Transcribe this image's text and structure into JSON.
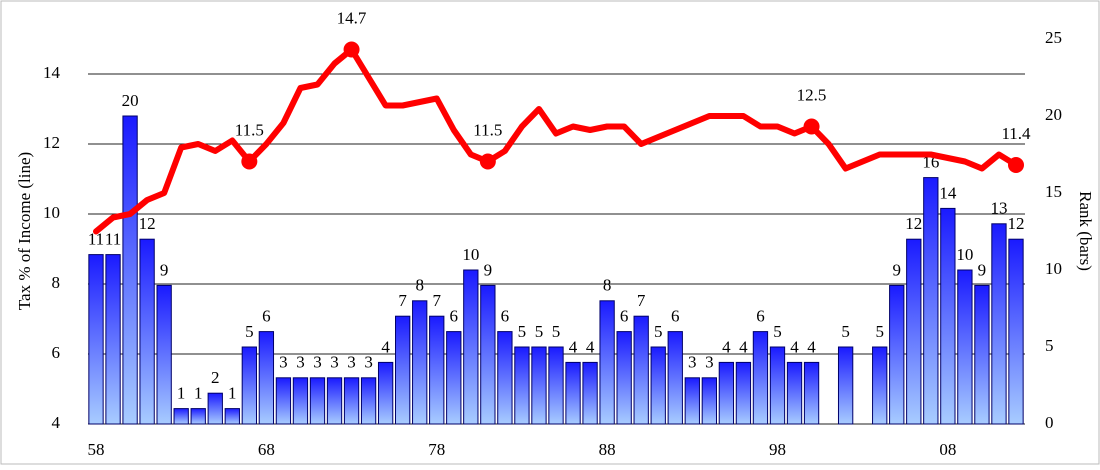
{
  "chart_data": {
    "type": "bar-line",
    "categories": [
      "58",
      null,
      null,
      null,
      null,
      null,
      null,
      null,
      null,
      null,
      "68",
      null,
      null,
      null,
      null,
      null,
      null,
      null,
      null,
      null,
      "78",
      null,
      null,
      null,
      null,
      null,
      null,
      null,
      null,
      null,
      "88",
      null,
      null,
      null,
      null,
      null,
      null,
      null,
      null,
      null,
      "98",
      null,
      null,
      null,
      null,
      null,
      null,
      null,
      null,
      null,
      "08",
      null,
      null,
      null,
      null
    ],
    "series": [
      {
        "name": "Rank (bars)",
        "type": "bar",
        "axis": "y2",
        "color": "#1f2fff",
        "values": [
          11,
          11,
          20,
          12,
          9,
          1,
          1,
          2,
          1,
          5,
          6,
          3,
          3,
          3,
          3,
          3,
          3,
          4,
          7,
          8,
          7,
          6,
          10,
          9,
          6,
          5,
          5,
          5,
          4,
          4,
          8,
          6,
          7,
          5,
          6,
          3,
          3,
          4,
          4,
          6,
          5,
          4,
          4,
          null,
          5,
          null,
          5,
          9,
          12,
          16,
          14,
          10,
          9,
          13,
          12
        ]
      },
      {
        "name": "Tax % of Income (line)",
        "type": "line",
        "axis": "y",
        "color": "#ff0000",
        "values": [
          9.5,
          9.9,
          10.0,
          10.4,
          10.6,
          11.9,
          12.0,
          11.8,
          12.1,
          11.5,
          12.0,
          12.6,
          13.6,
          13.7,
          14.3,
          14.7,
          13.9,
          13.1,
          13.1,
          13.2,
          13.3,
          12.4,
          11.7,
          11.5,
          11.8,
          12.5,
          13.0,
          12.3,
          12.5,
          12.4,
          12.5,
          12.5,
          12.0,
          12.2,
          12.4,
          12.6,
          12.8,
          12.8,
          12.8,
          12.5,
          12.5,
          12.3,
          12.5,
          12.0,
          11.3,
          11.5,
          11.7,
          11.7,
          11.7,
          11.7,
          11.6,
          11.5,
          11.3,
          11.7,
          11.4
        ],
        "value_labels": [
          null,
          null,
          null,
          null,
          null,
          null,
          null,
          null,
          null,
          "11.5",
          null,
          null,
          null,
          null,
          null,
          "14.7",
          null,
          null,
          null,
          null,
          null,
          null,
          null,
          "11.5",
          null,
          null,
          null,
          null,
          null,
          null,
          null,
          null,
          null,
          null,
          null,
          null,
          null,
          null,
          null,
          null,
          null,
          null,
          "12.5",
          null,
          null,
          null,
          null,
          null,
          null,
          null,
          null,
          null,
          null,
          null,
          "11.4"
        ]
      }
    ],
    "y_label": "Tax % of Income (line)",
    "y2_label": "Rank (bars)",
    "ylim": [
      4,
      15
    ],
    "yticks": [
      4,
      6,
      8,
      10,
      12,
      14
    ],
    "y2lim": [
      0,
      25
    ],
    "y2ticks": [
      0,
      5,
      10,
      15,
      20,
      25
    ],
    "grid": true
  }
}
